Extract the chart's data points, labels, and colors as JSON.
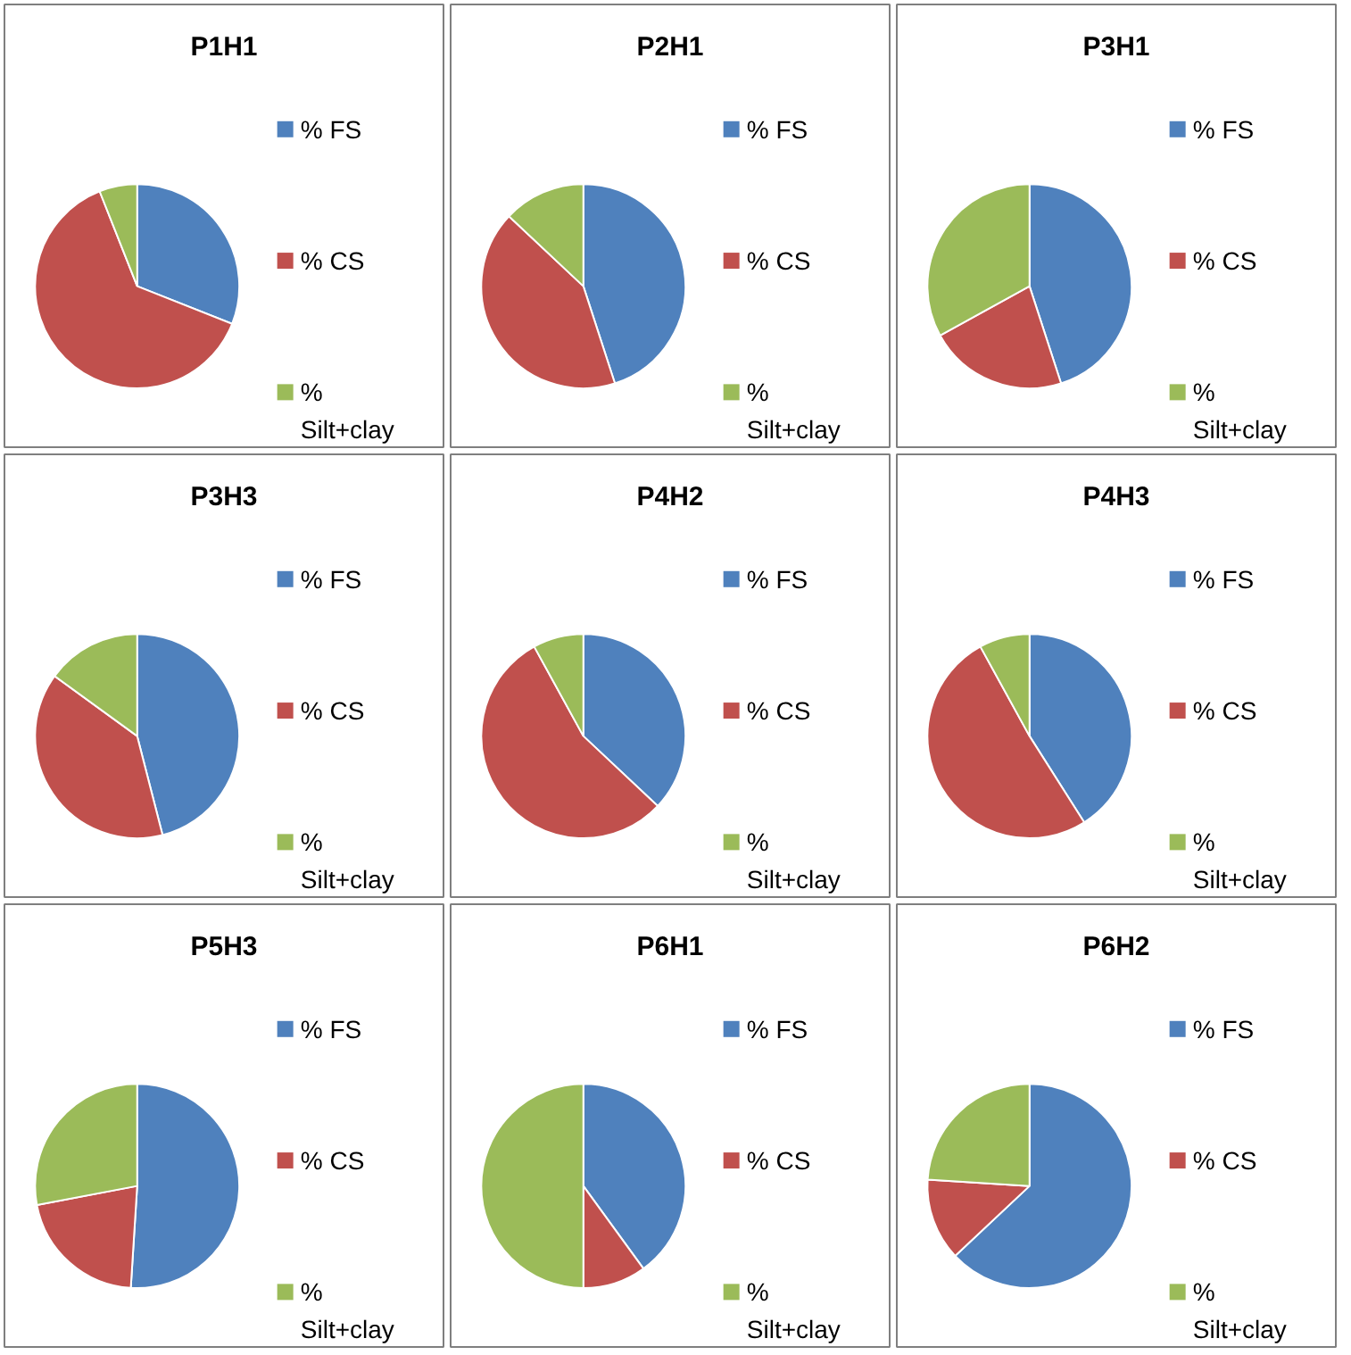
{
  "chart_data": [
    {
      "type": "pie",
      "title": "P1H1",
      "categories": [
        "% FS",
        "% CS",
        "% Silt+clay"
      ],
      "values": [
        31,
        63,
        6
      ],
      "colors": [
        "#4f81bd",
        "#c0504d",
        "#9bbb59"
      ],
      "legend": "right"
    },
    {
      "type": "pie",
      "title": "P2H1",
      "categories": [
        "% FS",
        "% CS",
        "% Silt+clay"
      ],
      "values": [
        45,
        42,
        13
      ],
      "colors": [
        "#4f81bd",
        "#c0504d",
        "#9bbb59"
      ],
      "legend": "right"
    },
    {
      "type": "pie",
      "title": "P3H1",
      "categories": [
        "% FS",
        "% CS",
        "% Silt+clay"
      ],
      "values": [
        45,
        22,
        33
      ],
      "colors": [
        "#4f81bd",
        "#c0504d",
        "#9bbb59"
      ],
      "legend": "right"
    },
    {
      "type": "pie",
      "title": "P3H3",
      "categories": [
        "% FS",
        "% CS",
        "% Silt+clay"
      ],
      "values": [
        46,
        39,
        15
      ],
      "colors": [
        "#4f81bd",
        "#c0504d",
        "#9bbb59"
      ],
      "legend": "right"
    },
    {
      "type": "pie",
      "title": "P4H2",
      "categories": [
        "% FS",
        "% CS",
        "% Silt+clay"
      ],
      "values": [
        37,
        55,
        8
      ],
      "colors": [
        "#4f81bd",
        "#c0504d",
        "#9bbb59"
      ],
      "legend": "right"
    },
    {
      "type": "pie",
      "title": "P4H3",
      "categories": [
        "% FS",
        "% CS",
        "% Silt+clay"
      ],
      "values": [
        41,
        51,
        8
      ],
      "colors": [
        "#4f81bd",
        "#c0504d",
        "#9bbb59"
      ],
      "legend": "right"
    },
    {
      "type": "pie",
      "title": "P5H3",
      "categories": [
        "% FS",
        "% CS",
        "% Silt+clay"
      ],
      "values": [
        51,
        21,
        28
      ],
      "colors": [
        "#4f81bd",
        "#c0504d",
        "#9bbb59"
      ],
      "legend": "right"
    },
    {
      "type": "pie",
      "title": "P6H1",
      "categories": [
        "% FS",
        "% CS",
        "% Silt+clay"
      ],
      "values": [
        40,
        10,
        50
      ],
      "colors": [
        "#4f81bd",
        "#c0504d",
        "#9bbb59"
      ],
      "legend": "right"
    },
    {
      "type": "pie",
      "title": "P6H2",
      "categories": [
        "% FS",
        "% CS",
        "% Silt+clay"
      ],
      "values": [
        63,
        13,
        24
      ],
      "colors": [
        "#4f81bd",
        "#c0504d",
        "#9bbb59"
      ],
      "legend": "right"
    }
  ]
}
